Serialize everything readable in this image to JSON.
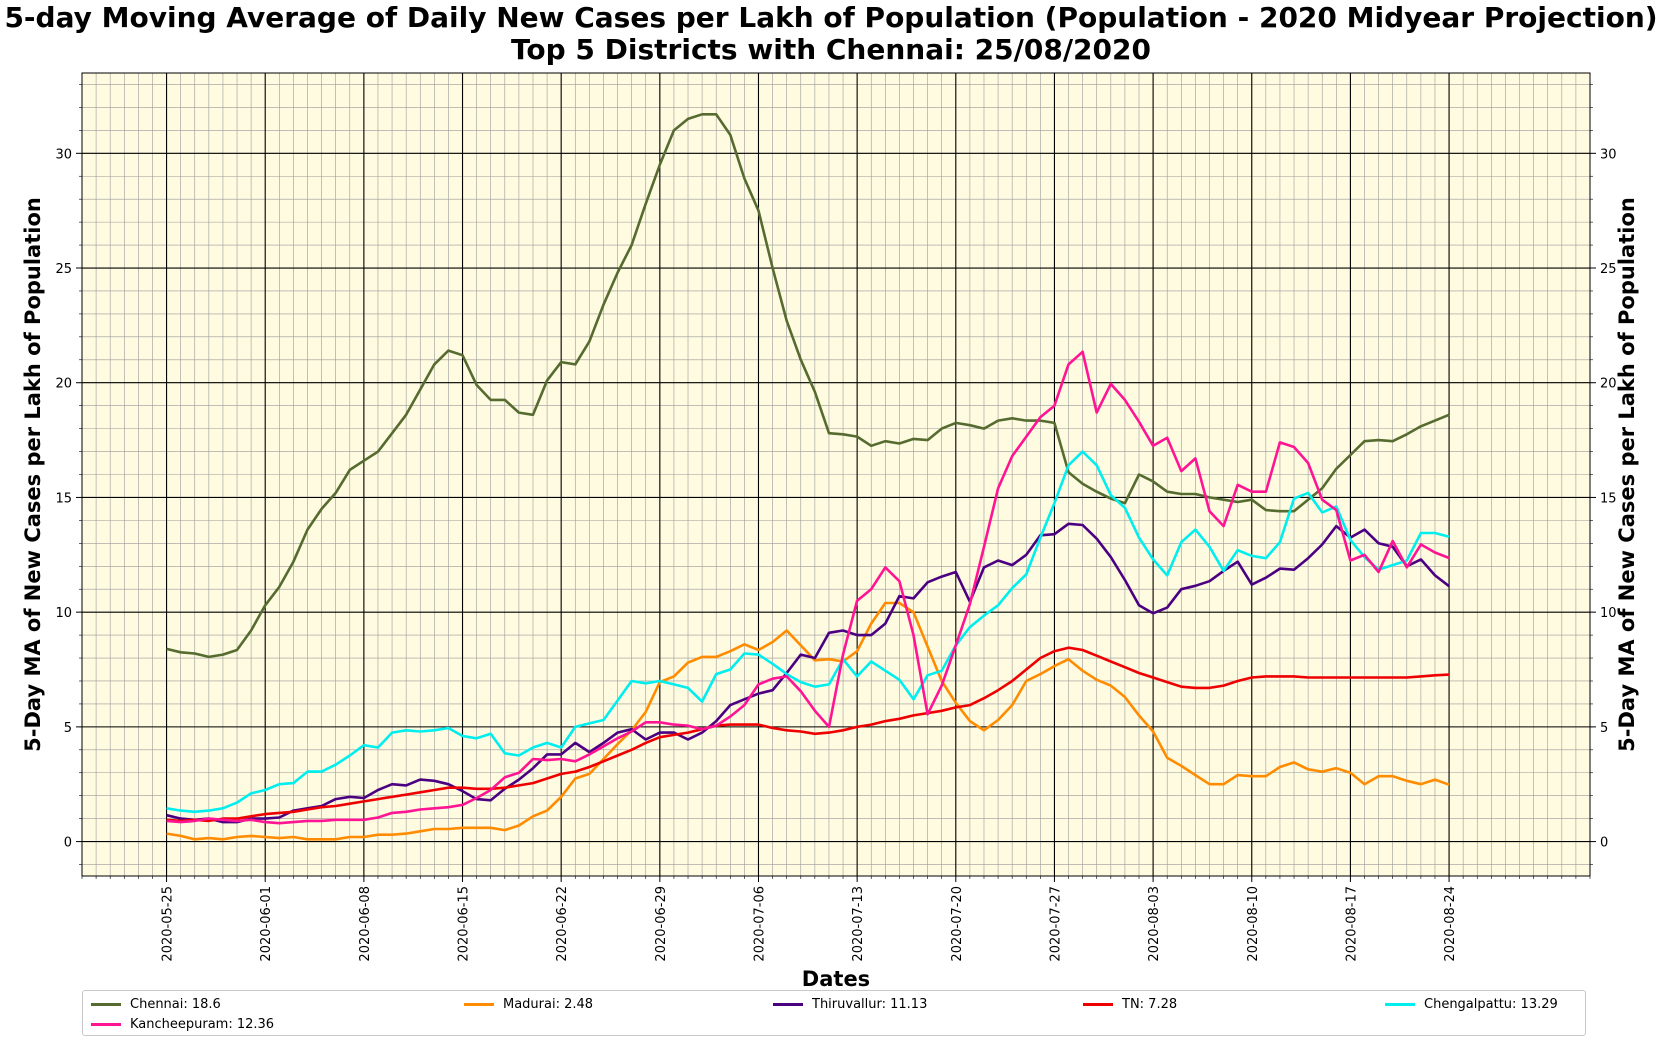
{
  "chart_data": {
    "type": "line",
    "title": "5-day Moving Average of Daily New Cases per Lakh of Population (Population - 2020 Midyear Projection)",
    "subtitle": "Top 5 Districts with Chennai: 25/08/2020",
    "xlabel": "Dates",
    "ylabel": "5-Day MA of New Cases per Lakh of Population",
    "ylim": [
      -1.5,
      33.5
    ],
    "yticks": [
      "0",
      "5",
      "10",
      "15",
      "20",
      "25",
      "30"
    ],
    "x_start": "2020-05-25",
    "xticks": [
      "2020-05-25",
      "2020-06-01",
      "2020-06-08",
      "2020-06-15",
      "2020-06-22",
      "2020-06-29",
      "2020-07-06",
      "2020-07-13",
      "2020-07-20",
      "2020-07-27",
      "2020-08-03",
      "2020-08-10",
      "2020-08-17",
      "2020-08-24"
    ],
    "background": "#fffbe0",
    "grid": true,
    "legend_placement": "bottom",
    "series": [
      {
        "name": "Chennai: 18.6",
        "color": "#556b2f",
        "values": [
          8.4,
          8.25,
          8.2,
          8.05,
          8.15,
          8.35,
          9.2,
          10.3,
          11.1,
          12.2,
          13.6,
          14.5,
          15.2,
          16.2,
          16.6,
          17.0,
          17.8,
          18.6,
          19.7,
          20.8,
          21.4,
          21.2,
          19.9,
          19.25,
          19.25,
          18.7,
          18.6,
          20.1,
          20.9,
          20.8,
          21.8,
          23.4,
          24.8,
          26.0,
          27.8,
          29.5,
          31.0,
          31.5,
          31.7,
          31.7,
          30.8,
          28.9,
          27.5,
          25.0,
          22.7,
          21.0,
          19.6,
          17.8,
          17.75,
          17.65,
          17.25,
          17.45,
          17.35,
          17.55,
          17.5,
          18.0,
          18.25,
          18.15,
          18.0,
          18.35,
          18.45,
          18.35,
          18.35,
          18.25,
          16.1,
          15.6,
          15.25,
          14.95,
          14.75,
          16.0,
          15.7,
          15.25,
          15.15,
          15.15,
          15.0,
          14.9,
          14.8,
          14.9,
          14.45,
          14.4,
          14.4,
          14.9,
          15.4,
          16.25,
          16.85,
          17.45,
          17.5,
          17.45,
          17.75,
          18.1,
          18.35,
          18.6
        ]
      },
      {
        "name": "Madurai: 2.48",
        "color": "#ff8c00",
        "values": [
          0.35,
          0.25,
          0.1,
          0.15,
          0.1,
          0.2,
          0.25,
          0.2,
          0.15,
          0.2,
          0.1,
          0.1,
          0.1,
          0.2,
          0.2,
          0.3,
          0.3,
          0.35,
          0.45,
          0.55,
          0.55,
          0.6,
          0.6,
          0.6,
          0.5,
          0.7,
          1.1,
          1.35,
          1.95,
          2.75,
          2.95,
          3.6,
          4.25,
          4.85,
          5.65,
          6.95,
          7.2,
          7.8,
          8.05,
          8.05,
          8.3,
          8.6,
          8.35,
          8.7,
          9.2,
          8.55,
          7.9,
          7.95,
          7.85,
          8.3,
          9.5,
          10.4,
          10.4,
          10.0,
          8.5,
          7.0,
          6.05,
          5.25,
          4.85,
          5.3,
          5.95,
          7.0,
          7.3,
          7.65,
          7.95,
          7.45,
          7.05,
          6.8,
          6.3,
          5.5,
          4.8,
          3.65,
          3.3,
          2.9,
          2.5,
          2.5,
          2.9,
          2.85,
          2.85,
          3.25,
          3.45,
          3.15,
          3.05,
          3.2,
          3.0,
          2.5,
          2.85,
          2.85,
          2.65,
          2.5,
          2.7,
          2.48
        ]
      },
      {
        "name": "Thiruvallur: 11.13",
        "color": "#4b0082",
        "values": [
          1.15,
          1.0,
          0.95,
          1.0,
          0.85,
          0.85,
          1.0,
          1.0,
          1.05,
          1.35,
          1.45,
          1.55,
          1.85,
          1.95,
          1.9,
          2.25,
          2.5,
          2.45,
          2.7,
          2.65,
          2.5,
          2.2,
          1.85,
          1.8,
          2.3,
          2.7,
          3.2,
          3.8,
          3.8,
          4.3,
          3.9,
          4.3,
          4.75,
          4.9,
          4.45,
          4.75,
          4.75,
          4.45,
          4.75,
          5.25,
          5.95,
          6.2,
          6.45,
          6.6,
          7.35,
          8.15,
          8.0,
          9.1,
          9.2,
          9.0,
          9.0,
          9.5,
          10.7,
          10.6,
          11.3,
          11.55,
          11.75,
          10.45,
          11.95,
          12.25,
          12.05,
          12.5,
          13.35,
          13.4,
          13.85,
          13.8,
          13.2,
          12.4,
          11.4,
          10.3,
          9.95,
          10.2,
          11.0,
          11.15,
          11.35,
          11.8,
          12.2,
          11.2,
          11.5,
          11.9,
          11.85,
          12.35,
          12.95,
          13.75,
          13.25,
          13.6,
          13.0,
          12.85,
          12.0,
          12.3,
          11.6,
          11.13
        ]
      },
      {
        "name": "TN: 7.28",
        "color": "#ee0000",
        "values": [
          0.95,
          0.9,
          0.95,
          0.9,
          1.0,
          1.0,
          1.1,
          1.2,
          1.25,
          1.3,
          1.4,
          1.5,
          1.55,
          1.65,
          1.75,
          1.85,
          1.95,
          2.05,
          2.15,
          2.25,
          2.35,
          2.35,
          2.3,
          2.3,
          2.35,
          2.45,
          2.55,
          2.75,
          2.95,
          3.05,
          3.25,
          3.5,
          3.75,
          4.0,
          4.3,
          4.55,
          4.65,
          4.75,
          4.9,
          5.05,
          5.1,
          5.1,
          5.1,
          4.95,
          4.85,
          4.8,
          4.7,
          4.75,
          4.85,
          5.0,
          5.1,
          5.25,
          5.35,
          5.5,
          5.6,
          5.7,
          5.85,
          5.95,
          6.25,
          6.6,
          7.0,
          7.5,
          8.0,
          8.3,
          8.45,
          8.35,
          8.1,
          7.85,
          7.6,
          7.35,
          7.15,
          6.95,
          6.75,
          6.7,
          6.7,
          6.8,
          7.0,
          7.15,
          7.2,
          7.2,
          7.2,
          7.15,
          7.15,
          7.15,
          7.15,
          7.15,
          7.15,
          7.15,
          7.15,
          7.2,
          7.25,
          7.28
        ]
      },
      {
        "name": "Chengalpattu: 13.29",
        "color": "#00eeee",
        "values": [
          1.45,
          1.35,
          1.3,
          1.35,
          1.45,
          1.7,
          2.1,
          2.25,
          2.5,
          2.55,
          3.05,
          3.05,
          3.35,
          3.75,
          4.2,
          4.1,
          4.75,
          4.85,
          4.8,
          4.85,
          4.95,
          4.6,
          4.5,
          4.7,
          3.85,
          3.75,
          4.1,
          4.3,
          4.1,
          5.0,
          5.15,
          5.3,
          6.15,
          7.0,
          6.9,
          7.0,
          6.85,
          6.7,
          6.1,
          7.3,
          7.5,
          8.2,
          8.15,
          7.75,
          7.3,
          6.95,
          6.75,
          6.85,
          7.95,
          7.2,
          7.85,
          7.45,
          7.05,
          6.2,
          7.25,
          7.45,
          8.55,
          9.35,
          9.85,
          10.3,
          11.05,
          11.65,
          13.25,
          14.75,
          16.4,
          17.0,
          16.4,
          15.1,
          14.55,
          13.25,
          12.3,
          11.6,
          13.05,
          13.6,
          12.85,
          11.8,
          12.7,
          12.45,
          12.35,
          13.05,
          14.95,
          15.2,
          14.35,
          14.6,
          13.15,
          12.4,
          11.85,
          12.05,
          12.25,
          13.45,
          13.45,
          13.29
        ]
      },
      {
        "name": "Kancheepuram: 12.36",
        "color": "#ff1493",
        "values": [
          0.9,
          0.85,
          0.9,
          1.0,
          0.95,
          0.9,
          0.95,
          0.85,
          0.8,
          0.85,
          0.9,
          0.9,
          0.95,
          0.95,
          0.95,
          1.05,
          1.25,
          1.3,
          1.4,
          1.45,
          1.5,
          1.6,
          1.9,
          2.25,
          2.8,
          3.0,
          3.6,
          3.55,
          3.6,
          3.5,
          3.8,
          4.15,
          4.5,
          4.8,
          5.2,
          5.2,
          5.1,
          5.05,
          4.9,
          5.05,
          5.45,
          5.95,
          6.85,
          7.1,
          7.2,
          6.55,
          5.7,
          5.0,
          8.15,
          10.5,
          11.0,
          11.95,
          11.35,
          9.0,
          5.55,
          6.8,
          8.55,
          10.35,
          12.85,
          15.4,
          16.8,
          17.65,
          18.5,
          19.0,
          20.8,
          21.35,
          18.7,
          19.95,
          19.25,
          18.3,
          17.25,
          17.6,
          16.15,
          16.7,
          14.4,
          13.75,
          15.55,
          15.25,
          15.25,
          17.4,
          17.2,
          16.5,
          14.9,
          14.45,
          12.25,
          12.5,
          11.75,
          13.1,
          11.95,
          12.95,
          12.6,
          12.36
        ]
      }
    ]
  }
}
